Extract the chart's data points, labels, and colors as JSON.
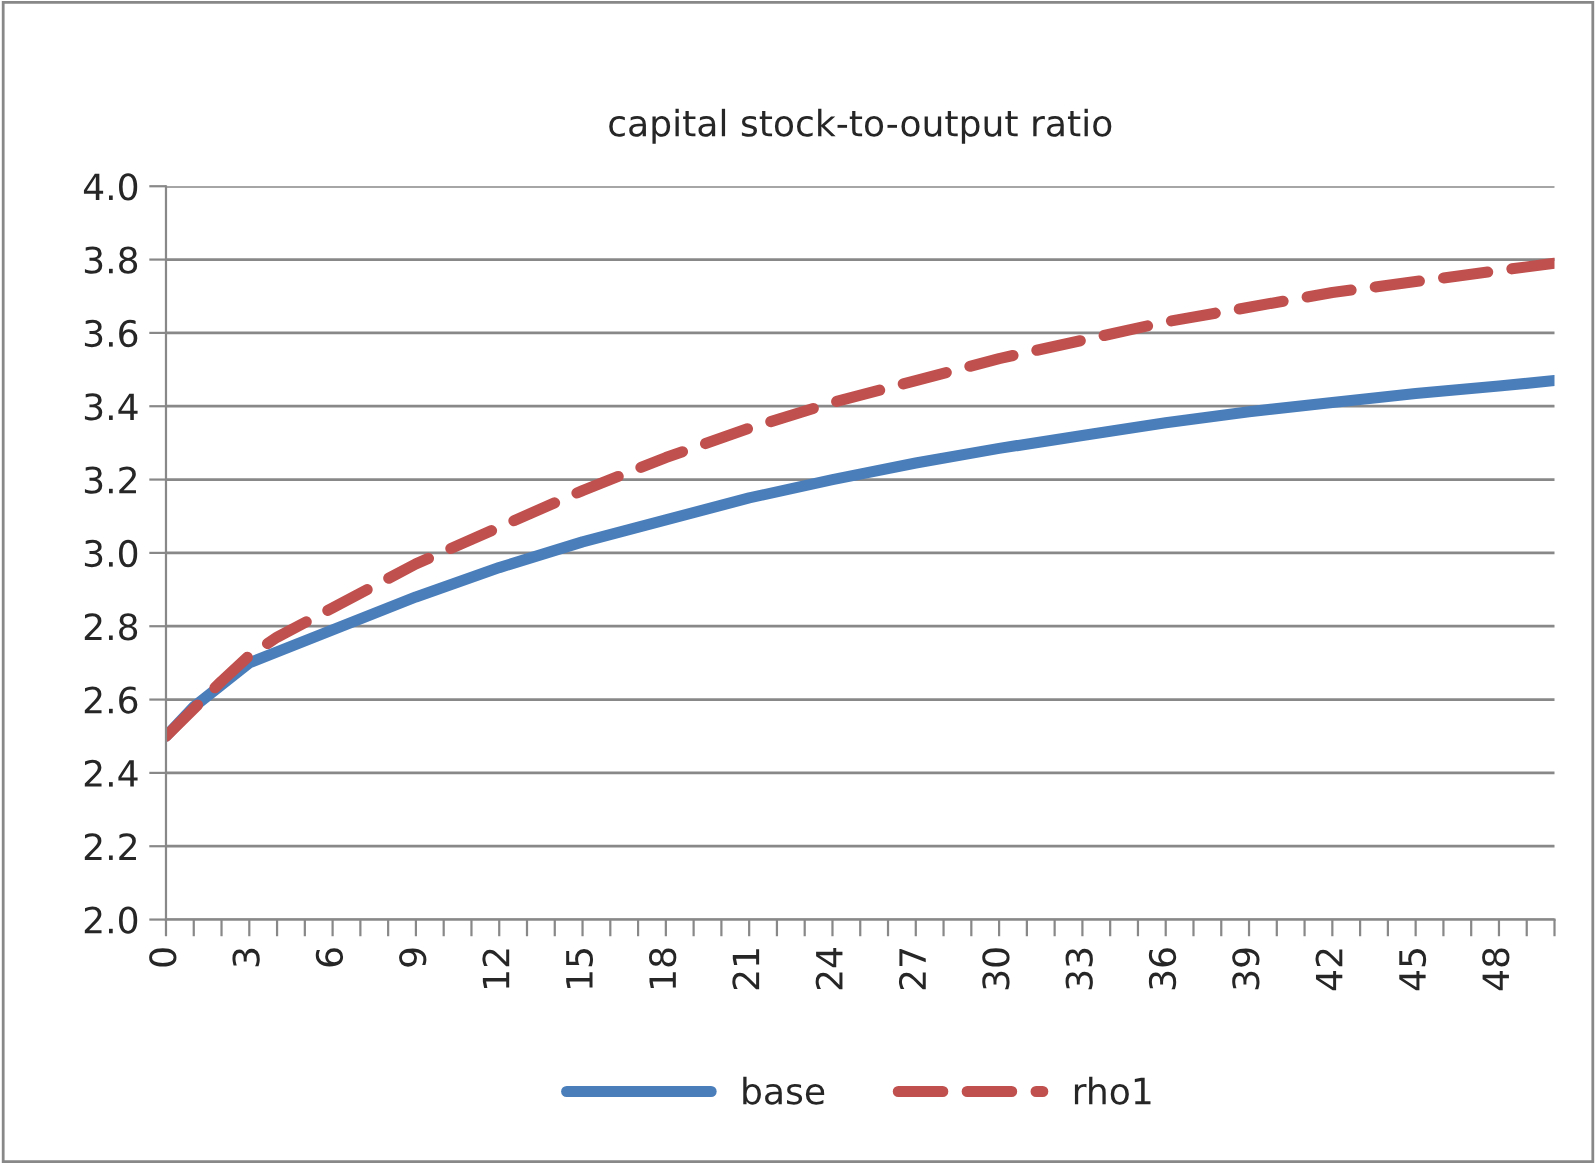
{
  "chart_data": {
    "type": "line",
    "title": "capital stock-to-output ratio",
    "series": [
      {
        "name": "base",
        "color": "#4a7ebb",
        "line_style": "solid",
        "x": [
          0,
          1,
          2,
          3,
          4,
          6,
          9,
          12,
          15,
          18,
          21,
          24,
          27,
          30,
          33,
          36,
          39,
          42,
          45,
          48,
          50
        ],
        "values": [
          2.5,
          2.58,
          2.64,
          2.7,
          2.73,
          2.79,
          2.88,
          2.96,
          3.03,
          3.09,
          3.15,
          3.2,
          3.245,
          3.285,
          3.32,
          3.355,
          3.385,
          3.41,
          3.435,
          3.455,
          3.47
        ]
      },
      {
        "name": "rho1",
        "color": "#c0504d",
        "line_style": "dashed",
        "x": [
          0,
          2,
          3,
          4,
          6,
          9,
          12,
          15,
          18,
          21,
          24,
          27,
          30,
          33,
          36,
          39,
          42,
          45,
          48,
          50
        ],
        "values": [
          2.5,
          2.65,
          2.72,
          2.77,
          2.85,
          2.97,
          3.07,
          3.17,
          3.26,
          3.34,
          3.41,
          3.47,
          3.53,
          3.58,
          3.63,
          3.67,
          3.71,
          3.74,
          3.77,
          3.79
        ]
      }
    ],
    "xlim": [
      0,
      50
    ],
    "xticks": [
      0,
      {
        "value": 1,
        "label": null
      },
      {
        "value": 2,
        "label": null
      },
      3,
      {
        "value": 4,
        "label": null
      },
      {
        "value": 5,
        "label": null
      },
      6,
      {
        "value": 7,
        "label": null
      },
      {
        "value": 8,
        "label": null
      },
      9,
      {
        "value": 10,
        "label": null
      },
      {
        "value": 11,
        "label": null
      },
      12,
      {
        "value": 13,
        "label": null
      },
      {
        "value": 14,
        "label": null
      },
      15,
      {
        "value": 16,
        "label": null
      },
      {
        "value": 17,
        "label": null
      },
      18,
      {
        "value": 19,
        "label": null
      },
      {
        "value": 20,
        "label": null
      },
      21,
      {
        "value": 22,
        "label": null
      },
      {
        "value": 23,
        "label": null
      },
      24,
      {
        "value": 25,
        "label": null
      },
      {
        "value": 26,
        "label": null
      },
      27,
      {
        "value": 28,
        "label": null
      },
      {
        "value": 29,
        "label": null
      },
      30,
      {
        "value": 31,
        "label": null
      },
      {
        "value": 32,
        "label": null
      },
      33,
      {
        "value": 34,
        "label": null
      },
      {
        "value": 35,
        "label": null
      },
      36,
      {
        "value": 37,
        "label": null
      },
      {
        "value": 38,
        "label": null
      },
      39,
      {
        "value": 40,
        "label": null
      },
      {
        "value": 41,
        "label": null
      },
      42,
      {
        "value": 43,
        "label": null
      },
      {
        "value": 44,
        "label": null
      },
      45,
      {
        "value": 46,
        "label": null
      },
      {
        "value": 47,
        "label": null
      },
      48,
      {
        "value": 49,
        "label": null
      },
      {
        "value": 50,
        "label": null
      }
    ],
    "ylim": [
      2.0,
      4.0
    ],
    "yticks": [
      {
        "value": 2.0,
        "label": "2.0"
      },
      {
        "value": 2.2,
        "label": "2.2"
      },
      {
        "value": 2.4,
        "label": "2.4"
      },
      {
        "value": 2.6,
        "label": "2.6"
      },
      {
        "value": 2.8,
        "label": "2.8"
      },
      {
        "value": 3.0,
        "label": "3.0"
      },
      {
        "value": 3.2,
        "label": "3.2"
      },
      {
        "value": 3.4,
        "label": "3.4"
      },
      {
        "value": 3.6,
        "label": "3.6"
      },
      {
        "value": 3.8,
        "label": "3.8"
      },
      {
        "value": 4.0,
        "label": "4.0"
      }
    ],
    "grid": "y",
    "legend": "bottom",
    "marker": "none"
  }
}
